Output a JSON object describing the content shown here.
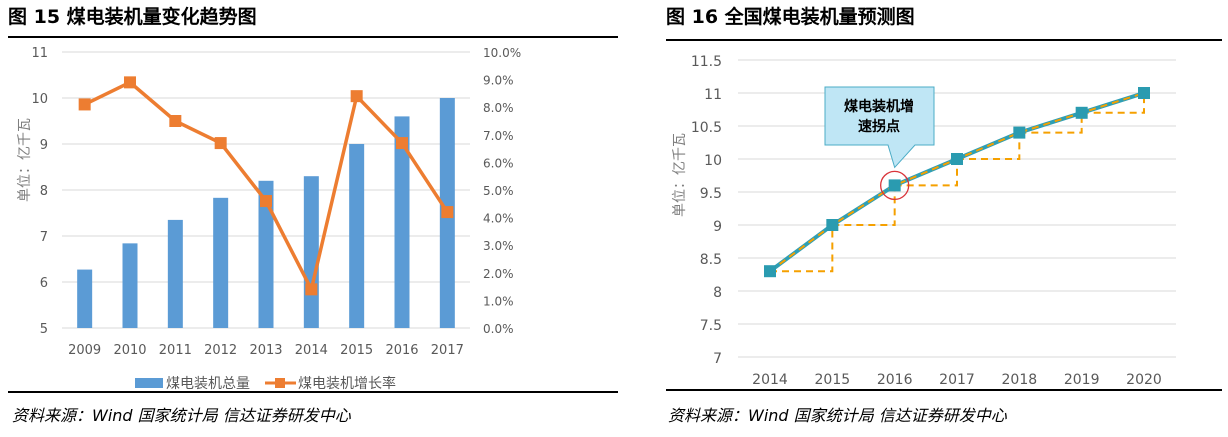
{
  "left": {
    "figure_title": "图 15 煤电装机量变化趋势图",
    "source": "资料来源：Wind 国家统计局  信达证券研发中心"
  },
  "right": {
    "figure_title": "图 16 全国煤电装机量预测图",
    "source": "资料来源：Wind 国家统计局  信达证券研发中心"
  },
  "chart_data": [
    {
      "type": "bar+line",
      "categories": [
        "2009",
        "2010",
        "2011",
        "2012",
        "2013",
        "2014",
        "2015",
        "2016",
        "2017"
      ],
      "ylabel": "单位：亿千瓦",
      "ylim": [
        5,
        11
      ],
      "y_ticks": [
        "5",
        "6",
        "7",
        "8",
        "9",
        "10",
        "11"
      ],
      "y2lim": [
        0,
        10
      ],
      "y2_ticks": [
        "0.0%",
        "1.0%",
        "2.0%",
        "3.0%",
        "4.0%",
        "5.0%",
        "6.0%",
        "7.0%",
        "8.0%",
        "9.0%",
        "10.0%"
      ],
      "grid": true,
      "legend_position": "bottom",
      "series": [
        {
          "name": "煤电装机总量",
          "type": "bar",
          "axis": "left",
          "color": "#5b9bd5",
          "values": [
            6.27,
            6.84,
            7.35,
            7.83,
            8.2,
            8.3,
            9.0,
            9.6,
            10.0
          ]
        },
        {
          "name": "煤电装机增长率",
          "type": "line",
          "axis": "right",
          "unit": "%",
          "color": "#ed7d31",
          "values": [
            8.1,
            8.9,
            7.5,
            6.7,
            4.6,
            1.4,
            8.4,
            6.7,
            4.2
          ]
        }
      ]
    },
    {
      "type": "line",
      "categories": [
        "2014",
        "2015",
        "2016",
        "2017",
        "2018",
        "2019",
        "2020"
      ],
      "ylabel": "单位：亿千瓦",
      "ylim": [
        7,
        11.5
      ],
      "y_ticks": [
        "7",
        "7.5",
        "8",
        "8.5",
        "9",
        "9.5",
        "10",
        "10.5",
        "11",
        "11.5"
      ],
      "grid": true,
      "series": [
        {
          "type": "line",
          "color": "#2e9fb5",
          "marker_color": "#2a9bb0",
          "values": [
            8.3,
            9.0,
            9.6,
            10.0,
            10.4,
            10.7,
            11.0
          ]
        }
      ],
      "step_guide_color": "#f5a000",
      "annotation": {
        "text_line1": "煤电装机增",
        "text_line2": "速拐点",
        "category": "2016",
        "highlight_color": "#d9343a",
        "box_color": "#bfe6f5"
      }
    }
  ]
}
